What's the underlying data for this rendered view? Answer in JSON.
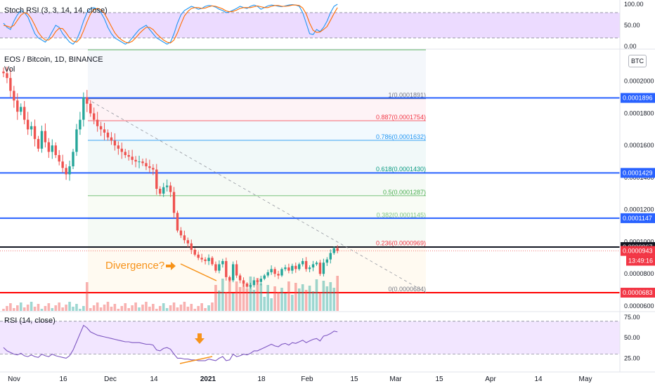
{
  "chart_title": "EOS / Bitcoin, 1D, BINANCE",
  "vol_label": "Vol",
  "stoch_title": "Stoch RSI (3, 3, 14, 14, close)",
  "rsi_title": "RSI (14, close)",
  "currency_button": "BTC",
  "annotation": "Divergence?",
  "colors": {
    "up": "#26a69a",
    "down": "#ef5350",
    "blue_level": "#2962ff",
    "red_level": "#ff0000",
    "band": "#e9d5ff",
    "stoch_k": "#2196f3",
    "stoch_d": "#ff6d00",
    "rsi": "#7e57c2",
    "arrow": "#f7931a"
  },
  "chart_data": [
    {
      "type": "candlestick",
      "title": "EOS / Bitcoin, 1D, BINANCE",
      "x_ticks": [
        "Nov",
        "16",
        "Dec",
        "14",
        "2021",
        "18",
        "Feb",
        "15",
        "Mar",
        "15",
        "Apr",
        "14",
        "May"
      ],
      "y_ticks": [
        "0.0002000",
        "0.0001800",
        "0.0001600",
        "0.0001400",
        "0.0001200",
        "0.0001000",
        "0.0000800",
        "0.0000600"
      ],
      "ylim": [
        5.65e-05,
        0.00022
      ],
      "price_tags": [
        {
          "value": 0.0001896,
          "label": "0.0001896",
          "style": "blue"
        },
        {
          "value": 0.0001429,
          "label": "0.0001429",
          "style": "blue"
        },
        {
          "value": 0.0001147,
          "label": "0.0001147",
          "style": "blue"
        },
        {
          "value": 9.67e-05,
          "label": "0.0000967",
          "style": "black"
        },
        {
          "value": 9.43e-05,
          "label": "0.0000943",
          "style": "red"
        },
        {
          "value": 6.83e-05,
          "label": "0.0000683",
          "style": "red"
        }
      ],
      "countdown": "13:49:16",
      "horizontal_levels": [
        {
          "value": 0.0001896,
          "color": "#2962ff"
        },
        {
          "value": 0.0001429,
          "color": "#2962ff"
        },
        {
          "value": 0.0001147,
          "color": "#2962ff"
        },
        {
          "value": 9.67e-05,
          "color": "#131722"
        },
        {
          "value": 6.83e-05,
          "color": "#ff0000"
        }
      ],
      "fibonacci": [
        {
          "level": "1",
          "value": 0.0001891,
          "label": "1(0.0001891)",
          "color": "#787b86"
        },
        {
          "level": "0.887",
          "value": 0.0001754,
          "label": "0.887(0.0001754)",
          "color": "#f23645"
        },
        {
          "level": "0.786",
          "value": 0.0001632,
          "label": "0.786(0.0001632)",
          "color": "#2196f3"
        },
        {
          "level": "0.618",
          "value": 0.000143,
          "label": "0.618(0.0001430)",
          "color": "#089981"
        },
        {
          "level": "0.5",
          "value": 0.0001287,
          "label": "0.5(0.0001287)",
          "color": "#4caf50"
        },
        {
          "level": "0.382",
          "value": 0.0001145,
          "label": "0.382(0.0001145)",
          "color": "#81c784"
        },
        {
          "level": "0.236",
          "value": 9.69e-05,
          "label": "0.236(0.0000969)",
          "color": "#f23645"
        },
        {
          "level": "0",
          "value": 6.84e-05,
          "label": "0(0.0000684)",
          "color": "#787b86"
        }
      ],
      "closes": [
        0.000205,
        0.000202,
        0.000194,
        0.000188,
        0.000181,
        0.000184,
        0.000176,
        0.00017,
        0.000172,
        0.000164,
        0.000158,
        0.000169,
        0.000162,
        0.000156,
        0.00016,
        0.000154,
        0.00015,
        0.000146,
        0.000142,
        0.000147,
        0.000156,
        0.00017,
        0.000176,
        0.00019,
        0.000186,
        0.00018,
        0.000176,
        0.000172,
        0.00017,
        0.000168,
        0.000165,
        0.000163,
        0.00016,
        0.000158,
        0.000156,
        0.000154,
        0.000153,
        0.000151,
        0.00015,
        0.00015,
        0.000149,
        0.000147,
        0.000146,
        0.000145,
        0.000133,
        0.00013,
        0.000134,
        0.000135,
        0.000131,
        0.000118,
        0.000107,
        0.000104,
        0.000101,
        9.9e-05,
        9.5e-05,
        9.2e-05,
        9e-05,
        8.9e-05,
        8.8e-05,
        9e-05,
        8.6e-05,
        8.2e-05,
        8.6e-05,
        8.8e-05,
        7.8e-05,
        7.6e-05,
        8.6e-05,
        7.9e-05,
        7.6e-05,
        7.4e-05,
        7.2e-05,
        7.3e-05,
        7.6e-05,
        7.5e-05,
        7.7e-05,
        7.9e-05,
        8.1e-05,
        8.3e-05,
        8e-05,
        7.9e-05,
        8.3e-05,
        8.4e-05,
        8.2e-05,
        8.5e-05,
        8.3e-05,
        8.6e-05,
        8.8e-05,
        8.3e-05,
        8.4e-05,
        8.6e-05,
        8.7e-05,
        8e-05,
        8.7e-05,
        8.9e-05,
        9.3e-05,
        9.6e-05,
        9.43e-05
      ]
    },
    {
      "type": "line",
      "title": "Stoch RSI (3, 3, 14, 14, close)",
      "y_ticks": [
        "100.00",
        "50.00",
        "0.00"
      ],
      "ylim": [
        0,
        100
      ],
      "band": [
        20,
        80
      ],
      "series": [
        {
          "values": [
            55,
            45,
            40,
            60,
            75,
            85,
            80,
            70,
            50,
            30,
            20,
            15,
            10,
            20,
            35,
            50,
            45,
            30,
            20,
            10,
            5,
            15,
            35,
            60,
            80,
            90,
            92,
            88,
            80,
            65,
            45,
            30,
            20,
            15,
            10,
            5,
            10,
            20,
            30,
            40,
            45,
            50,
            40,
            30,
            20,
            15,
            10,
            5,
            10,
            30,
            55,
            75,
            85,
            90,
            95,
            92,
            88,
            90,
            95,
            97,
            96,
            93,
            88,
            85,
            80,
            82,
            86,
            90,
            95,
            92,
            90,
            95,
            98,
            95,
            88,
            92,
            96,
            98,
            97,
            95,
            94,
            96,
            98,
            99,
            98,
            95,
            80,
            55,
            30,
            28,
            40,
            35,
            45,
            60,
            80,
            95,
            100
          ]
        },
        {
          "values": [
            50,
            48,
            45,
            50,
            62,
            74,
            80,
            77,
            66,
            50,
            33,
            22,
            15,
            15,
            22,
            35,
            43,
            42,
            32,
            20,
            12,
            10,
            18,
            37,
            58,
            77,
            87,
            90,
            87,
            78,
            63,
            47,
            32,
            22,
            15,
            10,
            8,
            12,
            20,
            30,
            38,
            45,
            45,
            40,
            30,
            22,
            15,
            10,
            8,
            15,
            32,
            53,
            72,
            83,
            90,
            92,
            92,
            90,
            91,
            94,
            96,
            95,
            92,
            89,
            84,
            82,
            83,
            86,
            90,
            92,
            92,
            92,
            94,
            96,
            94,
            92,
            92,
            95,
            97,
            97,
            95,
            95,
            96,
            98,
            98,
            97,
            91,
            77,
            55,
            38,
            33,
            34,
            40,
            47,
            62,
            78,
            92
          ]
        }
      ]
    },
    {
      "type": "line",
      "title": "RSI (14, close)",
      "y_ticks": [
        "75.00",
        "50.00",
        "25.00"
      ],
      "ylim": [
        10,
        80
      ],
      "band": [
        30,
        70
      ],
      "series": [
        {
          "values": [
            38,
            34,
            32,
            30,
            29,
            31,
            28,
            27,
            29,
            27,
            26,
            30,
            28,
            27,
            30,
            28,
            27,
            26,
            25,
            28,
            35,
            45,
            55,
            65,
            62,
            57,
            55,
            53,
            52,
            51,
            50,
            49,
            48,
            47,
            46,
            45,
            45,
            44,
            44,
            44,
            43,
            42,
            42,
            41,
            35,
            34,
            37,
            38,
            36,
            30,
            25,
            25,
            24,
            24,
            23,
            23,
            22,
            22,
            22,
            24,
            23,
            22,
            25,
            27,
            22,
            23,
            30,
            27,
            28,
            30,
            29,
            31,
            34,
            34,
            36,
            38,
            40,
            42,
            40,
            39,
            42,
            43,
            41,
            44,
            43,
            45,
            47,
            44,
            46,
            48,
            49,
            46,
            52,
            53,
            55,
            58,
            57
          ]
        }
      ]
    }
  ]
}
